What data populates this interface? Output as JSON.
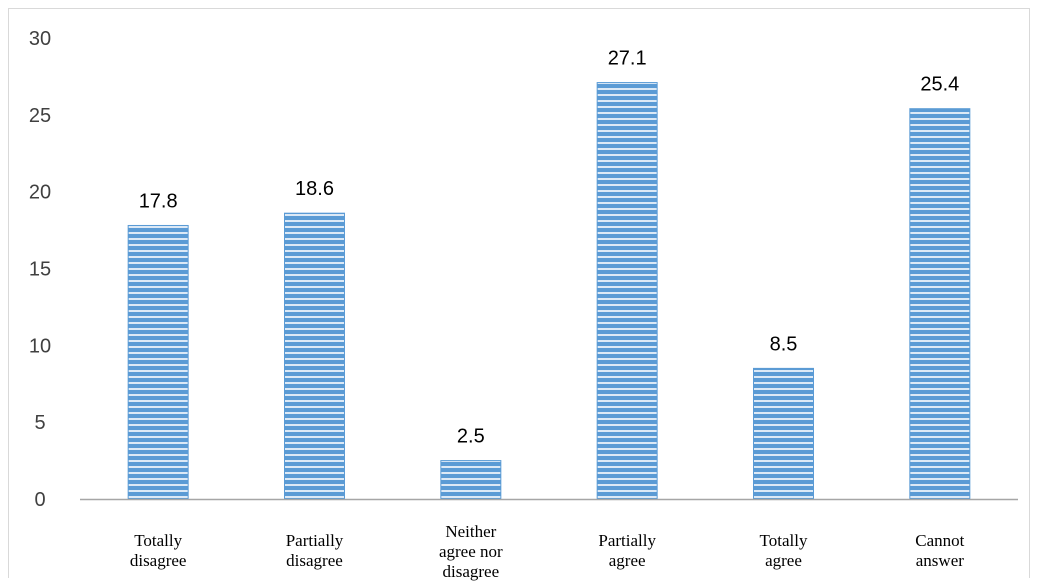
{
  "chart_data": {
    "type": "bar",
    "categories": [
      [
        "Totally",
        "disagree"
      ],
      [
        "Partially",
        "disagree"
      ],
      [
        "Neither",
        "agree nor",
        "disagree"
      ],
      [
        "Partially",
        "agree"
      ],
      [
        "Totally",
        "agree"
      ],
      [
        "Cannot",
        "answer"
      ]
    ],
    "values": [
      17.8,
      18.6,
      2.5,
      27.1,
      8.5,
      25.4
    ],
    "data_labels": [
      "17.8",
      "18.6",
      "2.5",
      "27.1",
      "8.5",
      "25.4"
    ],
    "ylim": [
      0,
      30
    ],
    "yticks": [
      0,
      5,
      10,
      15,
      20,
      25,
      30
    ],
    "grid": false,
    "legend": "none",
    "colors": {
      "bar": "#5b9bd5",
      "bar_stripe": "#dce9f6",
      "axis": "#a6a6a6"
    }
  }
}
